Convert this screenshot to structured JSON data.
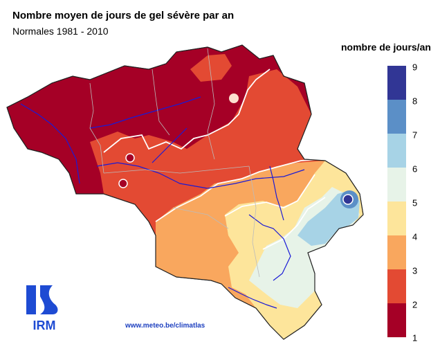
{
  "header": {
    "title": "Nombre moyen de jours de gel sévère par an",
    "subtitle": "Normales 1981 - 2010"
  },
  "legend": {
    "title": "nombre de jours/an",
    "ticks": [
      "9",
      "8",
      "7",
      "6",
      "5",
      "4",
      "3",
      "2",
      "1"
    ],
    "classes": [
      {
        "range": "8-9",
        "color": "#313695"
      },
      {
        "range": "7-8",
        "color": "#5b8fc7"
      },
      {
        "range": "6-7",
        "color": "#a7d3e6"
      },
      {
        "range": "5-6",
        "color": "#e7f3e8"
      },
      {
        "range": "4-5",
        "color": "#fde59b"
      },
      {
        "range": "3-4",
        "color": "#f9a75e"
      },
      {
        "range": "2-3",
        "color": "#e34a33"
      },
      {
        "range": "1-2",
        "color": "#a50026"
      }
    ]
  },
  "footer": {
    "url": "www.meteo.be/climatlas",
    "logo_text": "IRM"
  }
}
